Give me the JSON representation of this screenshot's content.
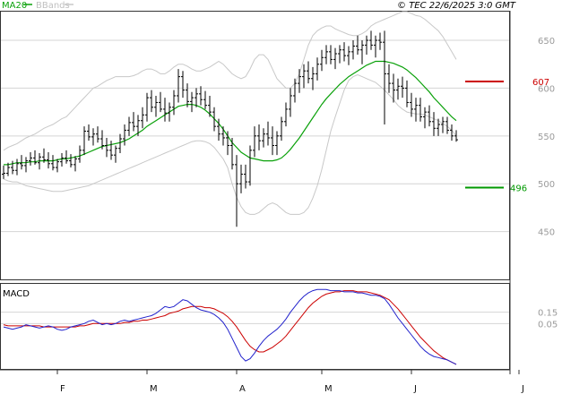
{
  "header": {
    "legend_ma": "MA20",
    "legend_bb": "BBands",
    "source": "© TEC 22/6/2025 3:0 GMT"
  },
  "colors": {
    "ma": "#0aa10a",
    "bb": "#c8c8c8",
    "bar": "#000000",
    "resistance": "#cc0000",
    "support": "#009900",
    "macd": "#2222cc",
    "signal": "#cc0000",
    "grid": "#d4d4d4"
  },
  "chart_data": [
    {
      "type": "ohlc",
      "title": "",
      "y_ticks": [
        450,
        500,
        550,
        600,
        650
      ],
      "ylim": [
        400,
        680
      ],
      "x_ticks": [
        {
          "label": "F",
          "index": 12
        },
        {
          "label": "M",
          "index": 32
        },
        {
          "label": "A",
          "index": 52
        },
        {
          "label": "M",
          "index": 71
        },
        {
          "label": "J",
          "index": 91
        },
        {
          "label": "J",
          "index": 115
        }
      ],
      "levels": {
        "resistance": 607,
        "support": 496
      },
      "ohlc": [
        [
          510,
          519,
          505,
          511
        ],
        [
          511,
          522,
          508,
          517
        ],
        [
          517,
          524,
          510,
          514
        ],
        [
          514,
          526,
          509,
          521
        ],
        [
          521,
          530,
          515,
          519
        ],
        [
          519,
          528,
          512,
          524
        ],
        [
          524,
          533,
          519,
          527
        ],
        [
          527,
          535,
          520,
          522
        ],
        [
          522,
          532,
          515,
          528
        ],
        [
          528,
          537,
          522,
          525
        ],
        [
          525,
          533,
          516,
          521
        ],
        [
          521,
          530,
          514,
          517
        ],
        [
          517,
          526,
          512,
          523
        ],
        [
          523,
          532,
          518,
          527
        ],
        [
          527,
          535,
          521,
          524
        ],
        [
          524,
          531,
          517,
          520
        ],
        [
          520,
          529,
          513,
          526
        ],
        [
          526,
          540,
          522,
          535
        ],
        [
          535,
          560,
          530,
          555
        ],
        [
          555,
          562,
          545,
          549
        ],
        [
          549,
          558,
          540,
          552
        ],
        [
          552,
          560,
          543,
          547
        ],
        [
          547,
          556,
          536,
          540
        ],
        [
          540,
          548,
          528,
          535
        ],
        [
          535,
          545,
          525,
          530
        ],
        [
          530,
          540,
          522,
          537
        ],
        [
          537,
          552,
          532,
          547
        ],
        [
          547,
          562,
          540,
          556
        ],
        [
          556,
          570,
          550,
          564
        ],
        [
          564,
          575,
          555,
          560
        ],
        [
          560,
          572,
          550,
          566
        ],
        [
          566,
          580,
          558,
          572
        ],
        [
          572,
          595,
          565,
          590
        ],
        [
          590,
          598,
          575,
          580
        ],
        [
          580,
          592,
          570,
          585
        ],
        [
          585,
          596,
          575,
          578
        ],
        [
          578,
          590,
          565,
          574
        ],
        [
          574,
          585,
          565,
          580
        ],
        [
          580,
          598,
          572,
          592
        ],
        [
          592,
          620,
          585,
          612
        ],
        [
          612,
          618,
          590,
          598
        ],
        [
          598,
          605,
          580,
          586
        ],
        [
          586,
          596,
          575,
          590
        ],
        [
          590,
          600,
          580,
          594
        ],
        [
          594,
          602,
          582,
          588
        ],
        [
          588,
          597,
          578,
          582
        ],
        [
          582,
          592,
          570,
          575
        ],
        [
          575,
          580,
          555,
          560
        ],
        [
          560,
          568,
          545,
          552
        ],
        [
          552,
          560,
          540,
          548
        ],
        [
          548,
          555,
          530,
          540
        ],
        [
          540,
          548,
          515,
          520
        ],
        [
          520,
          530,
          455,
          500
        ],
        [
          500,
          520,
          490,
          510
        ],
        [
          510,
          520,
          495,
          502
        ],
        [
          502,
          540,
          498,
          535
        ],
        [
          535,
          560,
          528,
          550
        ],
        [
          550,
          562,
          535,
          545
        ],
        [
          545,
          558,
          538,
          552
        ],
        [
          552,
          565,
          540,
          548
        ],
        [
          548,
          560,
          530,
          540
        ],
        [
          540,
          555,
          530,
          550
        ],
        [
          550,
          570,
          545,
          565
        ],
        [
          565,
          585,
          560,
          578
        ],
        [
          578,
          600,
          570,
          592
        ],
        [
          592,
          610,
          585,
          605
        ],
        [
          605,
          620,
          595,
          612
        ],
        [
          612,
          625,
          600,
          618
        ],
        [
          618,
          628,
          605,
          610
        ],
        [
          610,
          622,
          598,
          615
        ],
        [
          615,
          632,
          608,
          625
        ],
        [
          625,
          640,
          618,
          632
        ],
        [
          632,
          645,
          625,
          638
        ],
        [
          638,
          645,
          625,
          630
        ],
        [
          630,
          642,
          620,
          636
        ],
        [
          636,
          645,
          626,
          640
        ],
        [
          640,
          648,
          628,
          634
        ],
        [
          634,
          644,
          624,
          638
        ],
        [
          638,
          650,
          630,
          644
        ],
        [
          644,
          655,
          635,
          640
        ],
        [
          640,
          650,
          625,
          645
        ],
        [
          645,
          655,
          635,
          650
        ],
        [
          650,
          660,
          640,
          645
        ],
        [
          645,
          655,
          632,
          650
        ],
        [
          650,
          658,
          640,
          648
        ],
        [
          648,
          660,
          562,
          615
        ],
        [
          615,
          625,
          595,
          605
        ],
        [
          605,
          615,
          585,
          598
        ],
        [
          598,
          610,
          588,
          602
        ],
        [
          602,
          612,
          590,
          600
        ],
        [
          600,
          608,
          580,
          585
        ],
        [
          585,
          595,
          570,
          578
        ],
        [
          578,
          590,
          565,
          582
        ],
        [
          582,
          590,
          565,
          570
        ],
        [
          570,
          580,
          558,
          575
        ],
        [
          575,
          582,
          560,
          565
        ],
        [
          565,
          575,
          550,
          558
        ],
        [
          558,
          568,
          550,
          562
        ],
        [
          562,
          570,
          553,
          565
        ],
        [
          565,
          570,
          552,
          556
        ],
        [
          556,
          562,
          545,
          550
        ],
        [
          550,
          556,
          544,
          546
        ]
      ],
      "ma20": [
        520,
        520,
        521,
        522,
        522,
        522,
        523,
        523,
        524,
        524,
        524,
        524,
        525,
        526,
        526,
        527,
        528,
        529,
        531,
        533,
        535,
        537,
        539,
        540,
        541,
        542,
        543,
        545,
        547,
        550,
        553,
        556,
        560,
        563,
        566,
        569,
        572,
        575,
        578,
        581,
        582,
        583,
        583,
        582,
        580,
        577,
        573,
        568,
        563,
        557,
        550,
        543,
        538,
        533,
        530,
        527,
        526,
        525,
        524,
        524,
        524,
        525,
        527,
        531,
        536,
        542,
        548,
        555,
        562,
        569,
        576,
        583,
        589,
        594,
        599,
        604,
        608,
        612,
        615,
        618,
        621,
        624,
        626,
        628,
        628,
        628,
        627,
        626,
        624,
        622,
        619,
        615,
        611,
        606,
        601,
        596,
        590,
        585,
        580,
        575,
        570,
        566
      ],
      "bb_upper": [
        535,
        538,
        540,
        542,
        545,
        548,
        550,
        552,
        555,
        558,
        560,
        562,
        565,
        568,
        570,
        575,
        580,
        585,
        590,
        595,
        600,
        602,
        605,
        608,
        610,
        612,
        612,
        612,
        612,
        613,
        615,
        618,
        620,
        620,
        618,
        615,
        615,
        618,
        622,
        625,
        625,
        623,
        620,
        618,
        618,
        620,
        622,
        625,
        628,
        625,
        620,
        615,
        612,
        610,
        612,
        620,
        630,
        635,
        635,
        630,
        620,
        610,
        605,
        600,
        600,
        605,
        615,
        630,
        645,
        655,
        660,
        663,
        665,
        665,
        662,
        660,
        658,
        656,
        655,
        655,
        657,
        660,
        665,
        668,
        670,
        672,
        674,
        676,
        678,
        680,
        680,
        678,
        676,
        675,
        672,
        668,
        664,
        660,
        654,
        646,
        638,
        630
      ],
      "bb_lower": [
        505,
        503,
        502,
        502,
        500,
        498,
        497,
        496,
        495,
        494,
        493,
        492,
        492,
        492,
        493,
        494,
        495,
        496,
        497,
        498,
        500,
        502,
        504,
        506,
        508,
        510,
        512,
        514,
        516,
        518,
        520,
        522,
        524,
        526,
        528,
        530,
        532,
        534,
        536,
        538,
        540,
        542,
        544,
        545,
        545,
        544,
        542,
        538,
        532,
        526,
        517,
        500,
        486,
        476,
        470,
        468,
        468,
        470,
        474,
        478,
        480,
        478,
        474,
        470,
        468,
        468,
        468,
        470,
        475,
        485,
        498,
        515,
        535,
        555,
        570,
        584,
        598,
        608,
        612,
        614,
        612,
        610,
        608,
        606,
        602,
        598,
        593,
        588,
        582,
        578,
        575,
        574,
        573,
        573,
        572,
        570,
        568,
        566,
        563,
        560,
        556,
        550
      ]
    },
    {
      "type": "line",
      "title": "MACD",
      "y_ticks": [
        "0.05",
        "0.15"
      ],
      "ylim": [
        -0.35,
        0.4
      ],
      "macd": [
        0.02,
        0.01,
        0.0,
        0.01,
        0.02,
        0.04,
        0.03,
        0.02,
        0.01,
        0.02,
        0.03,
        0.02,
        0.0,
        -0.01,
        0.0,
        0.02,
        0.03,
        0.04,
        0.05,
        0.07,
        0.08,
        0.06,
        0.04,
        0.05,
        0.04,
        0.05,
        0.07,
        0.08,
        0.07,
        0.08,
        0.09,
        0.1,
        0.11,
        0.12,
        0.14,
        0.17,
        0.2,
        0.19,
        0.2,
        0.23,
        0.26,
        0.25,
        0.22,
        0.19,
        0.17,
        0.16,
        0.15,
        0.13,
        0.1,
        0.06,
        0.0,
        -0.08,
        -0.16,
        -0.24,
        -0.28,
        -0.26,
        -0.21,
        -0.15,
        -0.1,
        -0.06,
        -0.03,
        0.0,
        0.04,
        0.09,
        0.15,
        0.2,
        0.25,
        0.29,
        0.32,
        0.34,
        0.35,
        0.35,
        0.35,
        0.34,
        0.34,
        0.34,
        0.33,
        0.33,
        0.33,
        0.32,
        0.32,
        0.31,
        0.3,
        0.3,
        0.29,
        0.27,
        0.22,
        0.16,
        0.1,
        0.05,
        0.0,
        -0.05,
        -0.1,
        -0.15,
        -0.19,
        -0.22,
        -0.24,
        -0.25,
        -0.26,
        -0.27,
        -0.29,
        -0.31
      ],
      "signal": [
        0.04,
        0.03,
        0.03,
        0.03,
        0.03,
        0.03,
        0.03,
        0.03,
        0.03,
        0.02,
        0.02,
        0.02,
        0.02,
        0.02,
        0.02,
        0.02,
        0.02,
        0.03,
        0.03,
        0.04,
        0.05,
        0.05,
        0.05,
        0.05,
        0.05,
        0.05,
        0.05,
        0.06,
        0.06,
        0.07,
        0.07,
        0.08,
        0.08,
        0.09,
        0.1,
        0.11,
        0.12,
        0.14,
        0.15,
        0.16,
        0.18,
        0.19,
        0.2,
        0.2,
        0.2,
        0.19,
        0.19,
        0.18,
        0.16,
        0.14,
        0.11,
        0.07,
        0.02,
        -0.04,
        -0.1,
        -0.15,
        -0.18,
        -0.2,
        -0.2,
        -0.18,
        -0.16,
        -0.13,
        -0.1,
        -0.06,
        -0.01,
        0.04,
        0.09,
        0.14,
        0.19,
        0.23,
        0.26,
        0.29,
        0.31,
        0.32,
        0.33,
        0.33,
        0.34,
        0.34,
        0.34,
        0.33,
        0.33,
        0.33,
        0.32,
        0.31,
        0.3,
        0.28,
        0.26,
        0.22,
        0.18,
        0.13,
        0.08,
        0.03,
        -0.02,
        -0.07,
        -0.11,
        -0.15,
        -0.19,
        -0.22,
        -0.25,
        -0.27,
        -0.29,
        -0.31
      ]
    }
  ]
}
